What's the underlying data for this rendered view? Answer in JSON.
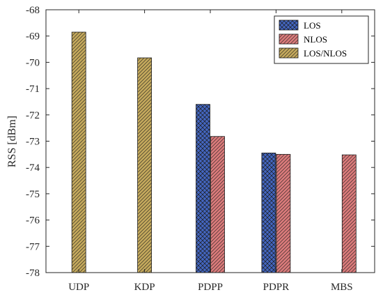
{
  "chart_data": {
    "type": "bar",
    "title": "",
    "xlabel": "",
    "ylabel": "RSS [dBm]",
    "ylim": [
      -78,
      -68
    ],
    "yticks": [
      -68,
      -69,
      -70,
      -71,
      -72,
      -73,
      -74,
      -75,
      -76,
      -77,
      -78
    ],
    "categories": [
      "UDP",
      "KDP",
      "PDPP",
      "PDPR",
      "MBS"
    ],
    "grid": false,
    "legend": "top-right",
    "series": [
      {
        "name": "LOS",
        "color": "#4466c0",
        "pattern": "crosshatch",
        "values": [
          null,
          null,
          -71.6,
          -73.45,
          null
        ]
      },
      {
        "name": "NLOS",
        "color": "#d97a7a",
        "pattern": "diagonal",
        "values": [
          null,
          null,
          -72.82,
          -73.5,
          -73.52
        ]
      },
      {
        "name": "LOS/NLOS",
        "color": "#c3a85c",
        "pattern": "diagonal",
        "values": [
          -68.85,
          -69.83,
          null,
          null,
          null
        ]
      }
    ]
  }
}
